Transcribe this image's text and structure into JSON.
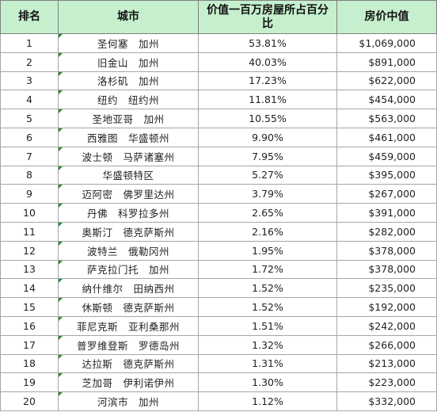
{
  "headers": {
    "rank": "排名",
    "city": "城市",
    "share": "价值一百万房屋所占百分比",
    "price": "房价中值"
  },
  "rows": [
    {
      "rank": "1",
      "city": "圣何塞　加州",
      "share": "53.81%",
      "price": "$1,069,000"
    },
    {
      "rank": "2",
      "city": "旧金山　加州",
      "share": "40.03%",
      "price": "$891,000"
    },
    {
      "rank": "3",
      "city": "洛杉矶　加州",
      "share": "17.23%",
      "price": "$622,000"
    },
    {
      "rank": "4",
      "city": "纽约　纽约州",
      "share": "11.81%",
      "price": "$454,000"
    },
    {
      "rank": "5",
      "city": "圣地亚哥　加州",
      "share": "10.55%",
      "price": "$563,000"
    },
    {
      "rank": "6",
      "city": "西雅图　华盛顿州",
      "share": "9.90%",
      "price": "$461,000"
    },
    {
      "rank": "7",
      "city": "波士顿　马萨诸塞州",
      "share": "7.95%",
      "price": "$459,000"
    },
    {
      "rank": "8",
      "city": "华盛顿特区",
      "share": "5.27%",
      "price": "$395,000"
    },
    {
      "rank": "9",
      "city": "迈阿密　佛罗里达州",
      "share": "3.79%",
      "price": "$267,000"
    },
    {
      "rank": "10",
      "city": "丹佛　科罗拉多州",
      "share": "2.65%",
      "price": "$391,000"
    },
    {
      "rank": "11",
      "city": "奥斯汀　德克萨斯州",
      "share": "2.16%",
      "price": "$282,000"
    },
    {
      "rank": "12",
      "city": "波特兰　俄勒冈州",
      "share": "1.95%",
      "price": "$378,000"
    },
    {
      "rank": "13",
      "city": "萨克拉门托　加州",
      "share": "1.72%",
      "price": "$378,000"
    },
    {
      "rank": "14",
      "city": "纳什维尔　田纳西州",
      "share": "1.52%",
      "price": "$235,000"
    },
    {
      "rank": "15",
      "city": "休斯顿　德克萨斯州",
      "share": "1.52%",
      "price": "$192,000"
    },
    {
      "rank": "16",
      "city": "菲尼克斯　亚利桑那州",
      "share": "1.51%",
      "price": "$242,000"
    },
    {
      "rank": "17",
      "city": "普罗维登斯　罗德岛州",
      "share": "1.32%",
      "price": "$266,000"
    },
    {
      "rank": "18",
      "city": "达拉斯　德克萨斯州",
      "share": "1.31%",
      "price": "$213,000"
    },
    {
      "rank": "19",
      "city": "芝加哥　伊利诺伊州",
      "share": "1.30%",
      "price": "$223,000"
    },
    {
      "rank": "20",
      "city": "河滨市　加州",
      "share": "1.12%",
      "price": "$332,000"
    }
  ],
  "colors": {
    "header_fill": "#c6efce",
    "cell_marker": "#1f8f2f"
  }
}
